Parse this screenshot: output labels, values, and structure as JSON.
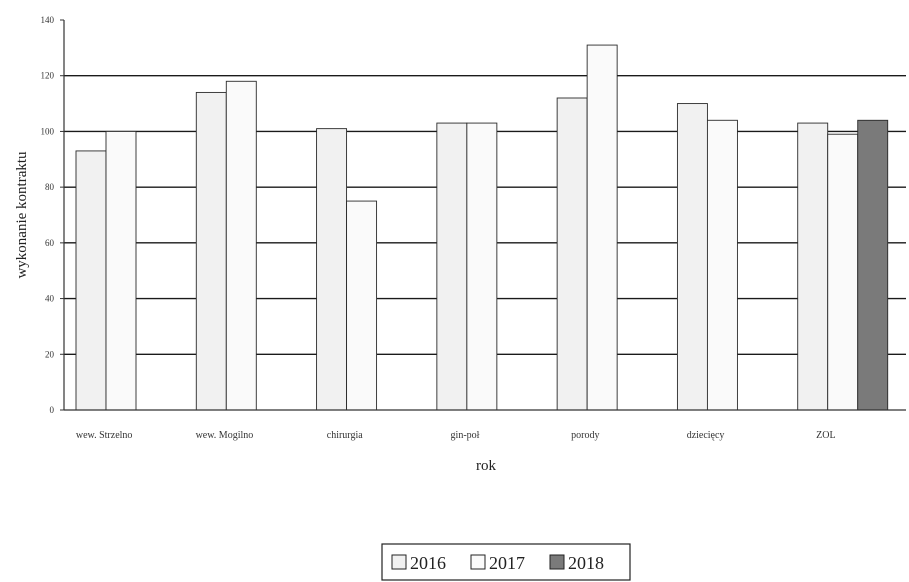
{
  "chart_data": {
    "type": "bar",
    "title": "",
    "xlabel": "rok",
    "ylabel": "wykonanie kontraktu",
    "ylim": [
      0,
      140
    ],
    "yticks": [
      0,
      20,
      40,
      60,
      80,
      100,
      120,
      140
    ],
    "categories": [
      "wew. Strzelno",
      "wew. Mogilno",
      "chirurgia",
      "gin-poł",
      "porody",
      "dziecięcy",
      "ZOL"
    ],
    "series": [
      {
        "name": "2016",
        "values": [
          93,
          114,
          101,
          103,
          112,
          110,
          103
        ],
        "color": "#f1f1f1"
      },
      {
        "name": "2017",
        "values": [
          100,
          118,
          75,
          103,
          131,
          104,
          99
        ],
        "color": "#fafafa"
      },
      {
        "name": "2018",
        "values": [
          null,
          null,
          null,
          null,
          null,
          null,
          104
        ],
        "color": "#7a7a7a"
      }
    ],
    "grid": true,
    "legend_position": "bottom-center"
  }
}
